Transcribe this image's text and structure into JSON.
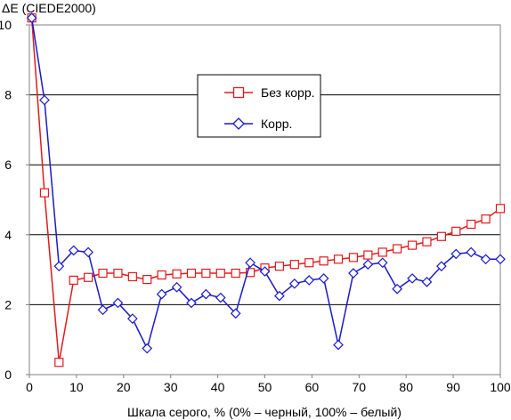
{
  "chart_data": {
    "type": "line",
    "ylabel": "ΔE (CIEDE2000)",
    "xlabel": "Шкала серого, % (0% – черный, 100% – белый)",
    "xlim": [
      0,
      100
    ],
    "ylim": [
      0,
      10
    ],
    "x_ticks": [
      0,
      10,
      20,
      30,
      40,
      50,
      60,
      70,
      80,
      90,
      100
    ],
    "y_ticks": [
      0,
      2,
      4,
      6,
      8,
      10
    ],
    "grid": "horizontal",
    "legend_position": "upper-center",
    "series": [
      {
        "name": "Без корр.",
        "color": "#e31a1c",
        "marker": "square",
        "x": [
          0.5,
          3.2,
          6.3,
          9.4,
          12.5,
          15.6,
          18.8,
          21.9,
          25.0,
          28.1,
          31.3,
          34.4,
          37.5,
          40.6,
          43.8,
          46.9,
          50.0,
          53.1,
          56.3,
          59.4,
          62.5,
          65.6,
          68.8,
          71.9,
          75.0,
          78.1,
          81.3,
          84.4,
          87.5,
          90.6,
          93.8,
          96.9,
          100.0
        ],
        "values": [
          10.2,
          5.2,
          0.35,
          2.7,
          2.78,
          2.9,
          2.9,
          2.8,
          2.72,
          2.85,
          2.88,
          2.9,
          2.9,
          2.9,
          2.9,
          2.92,
          3.05,
          3.1,
          3.15,
          3.2,
          3.25,
          3.3,
          3.35,
          3.42,
          3.5,
          3.6,
          3.7,
          3.8,
          3.95,
          4.1,
          4.3,
          4.45,
          4.75
        ]
      },
      {
        "name": "Корр.",
        "color": "#1a1acc",
        "marker": "diamond",
        "x": [
          0.5,
          3.2,
          6.3,
          9.4,
          12.5,
          15.6,
          18.8,
          21.9,
          25.0,
          28.1,
          31.3,
          34.4,
          37.5,
          40.6,
          43.8,
          46.9,
          50.0,
          53.1,
          56.3,
          59.4,
          62.5,
          65.6,
          68.8,
          71.9,
          75.0,
          78.1,
          81.3,
          84.4,
          87.5,
          90.6,
          93.8,
          96.9,
          100.0
        ],
        "values": [
          10.2,
          7.85,
          3.1,
          3.55,
          3.5,
          1.85,
          2.05,
          1.6,
          0.75,
          2.3,
          2.5,
          2.05,
          2.3,
          2.2,
          1.75,
          3.2,
          2.95,
          2.25,
          2.6,
          2.7,
          2.75,
          0.85,
          2.9,
          3.15,
          3.2,
          2.45,
          2.75,
          2.65,
          3.1,
          3.45,
          3.5,
          3.3,
          3.3
        ]
      }
    ]
  }
}
